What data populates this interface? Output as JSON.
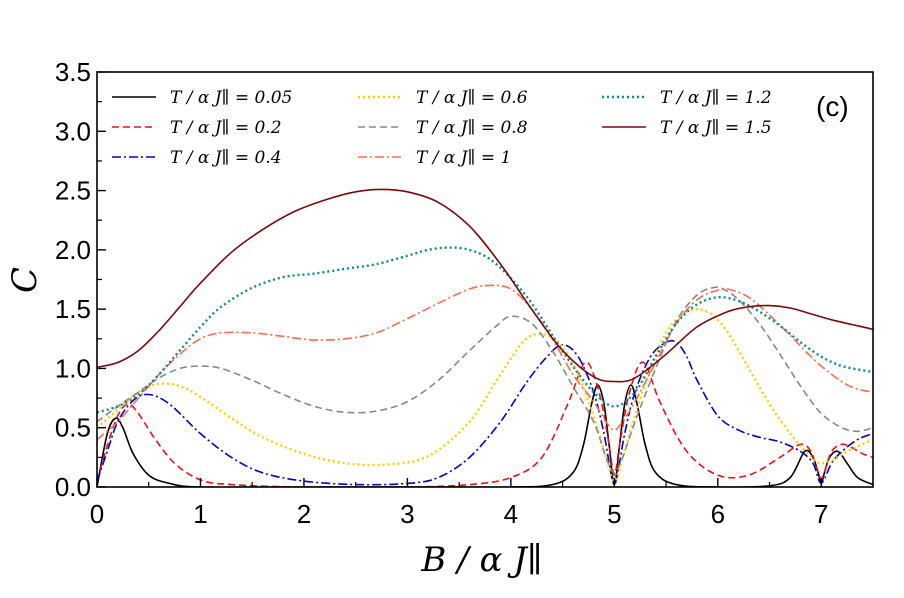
{
  "chart_data": {
    "type": "line",
    "title": "",
    "panel_label": "(c)",
    "xlabel": "B / α J∥",
    "ylabel": "C",
    "xlim": [
      0,
      7.5
    ],
    "ylim": [
      0,
      3.5
    ],
    "xticks": [
      0,
      1,
      2,
      3,
      4,
      5,
      6,
      7
    ],
    "xtick_labels": [
      "0",
      "1",
      "2",
      "3",
      "4",
      "5",
      "6",
      "7"
    ],
    "yticks": [
      0,
      0.5,
      1,
      1.5,
      2,
      2.5,
      3,
      3.5
    ],
    "ytick_labels": [
      "0.0",
      "0.5",
      "1.0",
      "1.5",
      "2.0",
      "2.5",
      "3.0",
      "3.5"
    ],
    "grid": false,
    "legend_position": "top-left",
    "series": [
      {
        "name": "T / α J∥ = 0.05",
        "color": "#000000",
        "style": "solid",
        "x": [
          0,
          0.1,
          0.18,
          0.25,
          0.35,
          0.5,
          0.7,
          1.0,
          2.0,
          3.0,
          4.0,
          4.4,
          4.6,
          4.7,
          4.78,
          4.84,
          4.9,
          4.95,
          5.0,
          5.05,
          5.1,
          5.16,
          5.22,
          5.3,
          5.4,
          5.6,
          6.0,
          6.5,
          6.7,
          6.84,
          6.92,
          6.97,
          7.0,
          7.03,
          7.08,
          7.16,
          7.25,
          7.35,
          7.5
        ],
        "y": [
          0.0,
          0.45,
          0.58,
          0.5,
          0.28,
          0.1,
          0.03,
          0.0,
          0.0,
          0.0,
          0.0,
          0.02,
          0.12,
          0.35,
          0.7,
          0.86,
          0.7,
          0.35,
          0.02,
          0.35,
          0.7,
          0.86,
          0.7,
          0.35,
          0.12,
          0.02,
          0.0,
          0.01,
          0.08,
          0.3,
          0.25,
          0.12,
          0.03,
          0.12,
          0.25,
          0.3,
          0.2,
          0.08,
          0.02
        ]
      },
      {
        "name": "T / α J∥ = 0.2",
        "color": "#ee1111",
        "style": "dashed",
        "x": [
          0,
          0.1,
          0.2,
          0.3,
          0.4,
          0.55,
          0.75,
          1.0,
          1.3,
          2.0,
          3.0,
          3.6,
          4.0,
          4.3,
          4.55,
          4.68,
          4.74,
          4.8,
          4.88,
          4.95,
          5.0,
          5.05,
          5.12,
          5.2,
          5.26,
          5.32,
          5.45,
          5.7,
          6.0,
          6.3,
          6.6,
          6.8,
          6.9,
          6.96,
          7.0,
          7.04,
          7.1,
          7.2,
          7.3,
          7.4,
          7.5
        ],
        "y": [
          0.05,
          0.35,
          0.6,
          0.7,
          0.62,
          0.42,
          0.2,
          0.06,
          0.02,
          0.0,
          0.0,
          0.02,
          0.08,
          0.25,
          0.7,
          1.0,
          1.05,
          0.95,
          0.7,
          0.35,
          0.1,
          0.35,
          0.7,
          0.95,
          1.05,
          1.0,
          0.7,
          0.3,
          0.1,
          0.1,
          0.25,
          0.36,
          0.3,
          0.15,
          0.07,
          0.15,
          0.3,
          0.36,
          0.33,
          0.28,
          0.25
        ]
      },
      {
        "name": "T / α J∥ = 0.4",
        "color": "#0000cc",
        "style": "dashdot",
        "x": [
          0,
          0.1,
          0.2,
          0.35,
          0.5,
          0.7,
          1.0,
          1.3,
          1.6,
          2.0,
          2.5,
          3.0,
          3.3,
          3.6,
          3.9,
          4.15,
          4.35,
          4.5,
          4.65,
          4.8,
          4.9,
          4.96,
          5.0,
          5.04,
          5.1,
          5.2,
          5.35,
          5.5,
          5.6,
          5.7,
          5.8,
          6.0,
          6.2,
          6.4,
          6.6,
          6.8,
          6.92,
          6.98,
          7.02,
          7.1,
          7.2,
          7.35,
          7.5
        ],
        "y": [
          0.05,
          0.3,
          0.55,
          0.73,
          0.78,
          0.7,
          0.45,
          0.25,
          0.12,
          0.05,
          0.02,
          0.03,
          0.08,
          0.25,
          0.55,
          0.88,
          1.1,
          1.2,
          1.1,
          0.8,
          0.45,
          0.15,
          0.02,
          0.15,
          0.45,
          0.8,
          1.1,
          1.22,
          1.22,
          1.1,
          0.9,
          0.6,
          0.48,
          0.42,
          0.38,
          0.3,
          0.2,
          0.05,
          0.05,
          0.2,
          0.3,
          0.4,
          0.45
        ]
      },
      {
        "name": "T / α J∥ = 0.6",
        "color": "#ffcc00",
        "style": "dotted",
        "x": [
          0,
          0.2,
          0.4,
          0.6,
          0.8,
          1.0,
          1.3,
          1.6,
          2.0,
          2.4,
          2.8,
          3.2,
          3.6,
          3.9,
          4.15,
          4.35,
          4.5,
          4.65,
          4.8,
          4.92,
          5.0,
          5.08,
          5.2,
          5.35,
          5.5,
          5.65,
          5.8,
          5.95,
          6.1,
          6.3,
          6.5,
          6.7,
          6.85,
          6.95,
          7.0,
          7.1,
          7.25,
          7.5
        ],
        "y": [
          0.5,
          0.65,
          0.8,
          0.87,
          0.85,
          0.76,
          0.58,
          0.42,
          0.28,
          0.2,
          0.19,
          0.26,
          0.55,
          0.95,
          1.25,
          1.28,
          1.18,
          0.95,
          0.6,
          0.25,
          0.05,
          0.25,
          0.6,
          1.0,
          1.3,
          1.45,
          1.5,
          1.45,
          1.3,
          1.0,
          0.7,
          0.45,
          0.3,
          0.22,
          0.2,
          0.22,
          0.3,
          0.4
        ]
      },
      {
        "name": "T / α J∥ = 0.8",
        "color": "#888888",
        "style": "dashed",
        "x": [
          0,
          0.2,
          0.4,
          0.6,
          0.8,
          1.0,
          1.2,
          1.5,
          1.8,
          2.1,
          2.4,
          2.7,
          3.0,
          3.3,
          3.6,
          3.85,
          4.0,
          4.2,
          4.4,
          4.6,
          4.8,
          4.92,
          5.0,
          5.08,
          5.2,
          5.4,
          5.6,
          5.8,
          5.95,
          6.05,
          6.2,
          6.4,
          6.6,
          6.8,
          7.0,
          7.2,
          7.35,
          7.5
        ],
        "y": [
          0.55,
          0.68,
          0.8,
          0.92,
          1.0,
          1.02,
          1.0,
          0.9,
          0.78,
          0.68,
          0.63,
          0.64,
          0.72,
          0.9,
          1.15,
          1.35,
          1.44,
          1.38,
          1.15,
          0.85,
          0.55,
          0.25,
          0.12,
          0.25,
          0.55,
          1.0,
          1.4,
          1.62,
          1.68,
          1.67,
          1.58,
          1.38,
          1.12,
          0.85,
          0.62,
          0.5,
          0.47,
          0.5
        ]
      },
      {
        "name": "T / α J∥ = 1",
        "color": "#ff6a4d",
        "style": "dashdot",
        "x": [
          0,
          0.2,
          0.4,
          0.6,
          0.8,
          1.0,
          1.2,
          1.5,
          1.8,
          2.1,
          2.4,
          2.7,
          3.0,
          3.3,
          3.6,
          3.8,
          4.0,
          4.2,
          4.4,
          4.6,
          4.8,
          4.92,
          5.0,
          5.08,
          5.2,
          5.4,
          5.6,
          5.8,
          6.0,
          6.1,
          6.3,
          6.5,
          6.7,
          6.9,
          7.1,
          7.3,
          7.5
        ],
        "y": [
          0.4,
          0.55,
          0.75,
          0.95,
          1.12,
          1.25,
          1.3,
          1.3,
          1.27,
          1.24,
          1.25,
          1.3,
          1.42,
          1.55,
          1.67,
          1.7,
          1.67,
          1.5,
          1.25,
          0.95,
          0.72,
          0.55,
          0.48,
          0.55,
          0.72,
          1.05,
          1.38,
          1.58,
          1.66,
          1.67,
          1.6,
          1.45,
          1.28,
          1.1,
          0.95,
          0.84,
          0.8
        ]
      },
      {
        "name": "T / α J∥ = 1.2",
        "color": "#0a8a8a",
        "style": "dotted",
        "x": [
          0,
          0.2,
          0.4,
          0.6,
          0.8,
          1.0,
          1.2,
          1.5,
          1.8,
          2.1,
          2.4,
          2.7,
          3.0,
          3.2,
          3.4,
          3.6,
          3.8,
          4.0,
          4.2,
          4.4,
          4.6,
          4.8,
          5.0,
          5.2,
          5.4,
          5.6,
          5.8,
          6.0,
          6.2,
          6.4,
          6.6,
          6.8,
          7.0,
          7.2,
          7.5
        ],
        "y": [
          0.63,
          0.68,
          0.78,
          0.95,
          1.15,
          1.35,
          1.52,
          1.68,
          1.77,
          1.8,
          1.84,
          1.88,
          1.95,
          2.0,
          2.02,
          2.0,
          1.92,
          1.76,
          1.55,
          1.28,
          1.02,
          0.8,
          0.68,
          0.8,
          1.1,
          1.38,
          1.54,
          1.6,
          1.57,
          1.48,
          1.36,
          1.22,
          1.1,
          1.02,
          0.97
        ]
      },
      {
        "name": "T / α J∥ = 1.5",
        "color": "#7a0a0a",
        "style": "solid",
        "x": [
          0,
          0.2,
          0.4,
          0.6,
          0.8,
          1.0,
          1.3,
          1.6,
          1.9,
          2.2,
          2.5,
          2.75,
          3.0,
          3.3,
          3.6,
          3.9,
          4.2,
          4.5,
          4.8,
          5.0,
          5.2,
          5.5,
          5.8,
          6.1,
          6.3,
          6.5,
          6.7,
          6.9,
          7.1,
          7.3,
          7.5
        ],
        "y": [
          1.01,
          1.05,
          1.15,
          1.32,
          1.52,
          1.72,
          1.98,
          2.17,
          2.32,
          2.42,
          2.49,
          2.51,
          2.49,
          2.4,
          2.2,
          1.88,
          1.5,
          1.15,
          0.93,
          0.89,
          0.92,
          1.12,
          1.35,
          1.48,
          1.52,
          1.53,
          1.51,
          1.46,
          1.41,
          1.37,
          1.33
        ]
      }
    ]
  }
}
